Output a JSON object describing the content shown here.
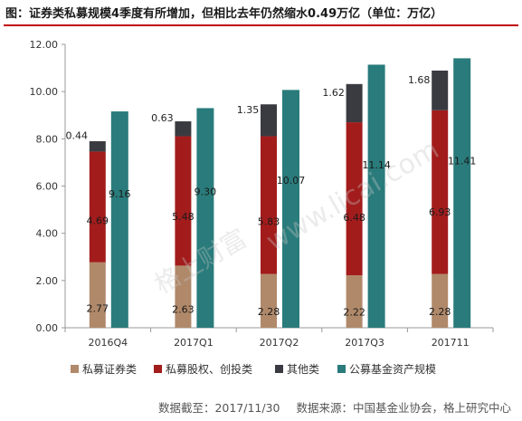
{
  "header": {
    "title": "图：证券类私募规模4季度有所增加，但相比去年仍然缩水0.49万亿（单位：万亿）"
  },
  "footer": {
    "date_label": "数据截至：2017/11/30",
    "source_label": "数据来源：中国基金业协会，格上研究中心"
  },
  "watermark": {
    "text": "格上财富",
    "url": "www.licai.com"
  },
  "chart_data": {
    "type": "bar",
    "stacked_group": [
      "私募证券类",
      "私募股权、创投类",
      "其他类"
    ],
    "categories": [
      "2016Q4",
      "2017Q1",
      "2017Q2",
      "2017Q3",
      "201711"
    ],
    "ylim": [
      0,
      12
    ],
    "yticks": [
      "0.00",
      "2.00",
      "4.00",
      "6.00",
      "8.00",
      "10.00",
      "12.00"
    ],
    "grid": false,
    "legend_position": "bottom",
    "series": [
      {
        "name": "私募证券类",
        "color": "#b0896a",
        "values": [
          2.77,
          2.63,
          2.28,
          2.22,
          2.28
        ],
        "labels": [
          "2.77",
          "2.63",
          "2.28",
          "2.22",
          "2.28"
        ]
      },
      {
        "name": "私募股权、创投类",
        "color": "#a31c1c",
        "values": [
          4.69,
          5.48,
          5.83,
          6.48,
          6.93
        ],
        "labels": [
          "4.69",
          "5.48",
          "5.83",
          "6.48",
          "6.93"
        ]
      },
      {
        "name": "其他类",
        "color": "#3a3b40",
        "values": [
          0.44,
          0.63,
          1.35,
          1.62,
          1.68
        ],
        "labels": [
          "0.44",
          "0.63",
          "1.35",
          "1.62",
          "1.68"
        ]
      },
      {
        "name": "公募基金资产规模",
        "color": "#2a7b7b",
        "values": [
          9.16,
          9.3,
          10.07,
          11.14,
          11.41
        ],
        "labels": [
          "9.16",
          "9.30",
          "10.07",
          "11.14",
          "11.41"
        ]
      }
    ]
  }
}
